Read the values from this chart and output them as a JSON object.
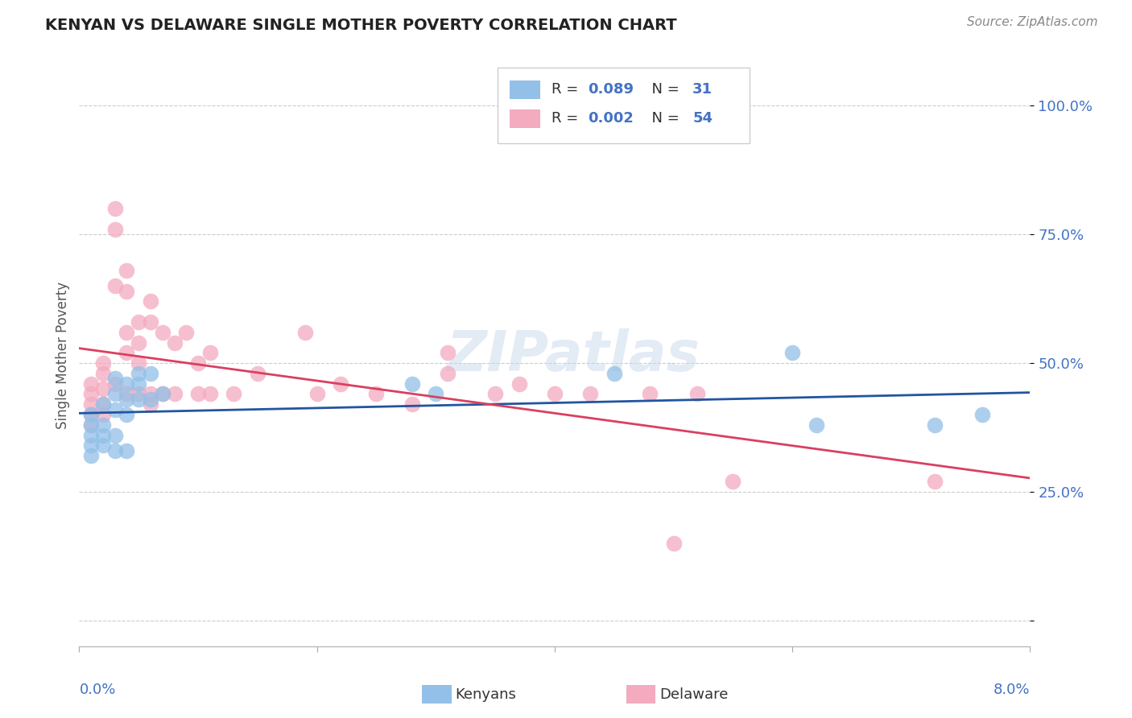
{
  "title": "KENYAN VS DELAWARE SINGLE MOTHER POVERTY CORRELATION CHART",
  "source": "Source: ZipAtlas.com",
  "ylabel": "Single Mother Poverty",
  "yticks": [
    0.0,
    0.25,
    0.5,
    0.75,
    1.0
  ],
  "ytick_labels": [
    "",
    "25.0%",
    "50.0%",
    "75.0%",
    "100.0%"
  ],
  "xlim": [
    0.0,
    0.08
  ],
  "ylim": [
    -0.05,
    1.08
  ],
  "blue_color": "#92C0E8",
  "pink_color": "#F4AABF",
  "blue_line_color": "#2255A0",
  "pink_line_color": "#D94060",
  "watermark": "ZIPatlas",
  "kenyans_x": [
    0.001,
    0.001,
    0.001,
    0.001,
    0.001,
    0.002,
    0.002,
    0.002,
    0.002,
    0.003,
    0.003,
    0.003,
    0.003,
    0.003,
    0.004,
    0.004,
    0.004,
    0.004,
    0.005,
    0.005,
    0.005,
    0.006,
    0.006,
    0.007,
    0.028,
    0.03,
    0.045,
    0.06,
    0.062,
    0.072,
    0.076
  ],
  "kenyans_y": [
    0.4,
    0.38,
    0.36,
    0.34,
    0.32,
    0.42,
    0.38,
    0.36,
    0.34,
    0.47,
    0.44,
    0.41,
    0.36,
    0.33,
    0.46,
    0.43,
    0.4,
    0.33,
    0.48,
    0.46,
    0.43,
    0.48,
    0.43,
    0.44,
    0.46,
    0.44,
    0.48,
    0.52,
    0.38,
    0.38,
    0.4
  ],
  "delaware_x": [
    0.001,
    0.001,
    0.001,
    0.001,
    0.001,
    0.002,
    0.002,
    0.002,
    0.002,
    0.002,
    0.003,
    0.003,
    0.003,
    0.003,
    0.004,
    0.004,
    0.004,
    0.004,
    0.004,
    0.005,
    0.005,
    0.005,
    0.005,
    0.006,
    0.006,
    0.006,
    0.006,
    0.007,
    0.007,
    0.008,
    0.008,
    0.009,
    0.01,
    0.01,
    0.011,
    0.011,
    0.013,
    0.015,
    0.019,
    0.02,
    0.022,
    0.025,
    0.028,
    0.031,
    0.031,
    0.035,
    0.037,
    0.04,
    0.043,
    0.048,
    0.05,
    0.052,
    0.055,
    0.072
  ],
  "delaware_y": [
    0.46,
    0.44,
    0.42,
    0.4,
    0.38,
    0.5,
    0.48,
    0.45,
    0.42,
    0.4,
    0.8,
    0.76,
    0.65,
    0.46,
    0.68,
    0.64,
    0.56,
    0.52,
    0.44,
    0.58,
    0.54,
    0.5,
    0.44,
    0.62,
    0.58,
    0.44,
    0.42,
    0.56,
    0.44,
    0.54,
    0.44,
    0.56,
    0.5,
    0.44,
    0.52,
    0.44,
    0.44,
    0.48,
    0.56,
    0.44,
    0.46,
    0.44,
    0.42,
    0.52,
    0.48,
    0.44,
    0.46,
    0.44,
    0.44,
    0.44,
    0.15,
    0.44,
    0.27,
    0.27
  ]
}
